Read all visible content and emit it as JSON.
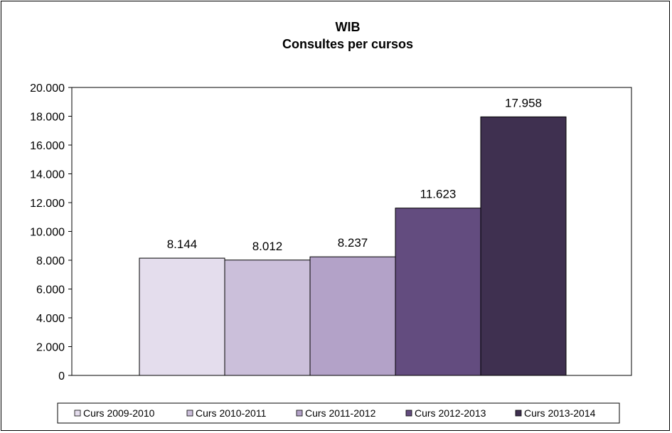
{
  "chart_data": {
    "type": "bar",
    "title": "WIB",
    "subtitle": "Consultes per cursos",
    "xlabel": "",
    "ylabel": "",
    "ylim": [
      0,
      20000
    ],
    "yticks": [
      0,
      2000,
      4000,
      6000,
      8000,
      10000,
      12000,
      14000,
      16000,
      18000,
      20000
    ],
    "ytick_labels": [
      "0",
      "2.000",
      "4.000",
      "6.000",
      "8.000",
      "10.000",
      "12.000",
      "14.000",
      "16.000",
      "18.000",
      "20.000"
    ],
    "grid": false,
    "legend_position": "bottom",
    "series": [
      {
        "name": "Curs 2009-2010",
        "value": 8144,
        "label": "8.144",
        "color": "#e4dded"
      },
      {
        "name": "Curs 2010-2011",
        "value": 8012,
        "label": "8.012",
        "color": "#cbbfda"
      },
      {
        "name": "Curs 2011-2012",
        "value": 8237,
        "label": "8.237",
        "color": "#b3a2c8"
      },
      {
        "name": "Curs 2012-2013",
        "value": 11623,
        "label": "11.623",
        "color": "#634c7f"
      },
      {
        "name": "Curs 2013-2014",
        "value": 17958,
        "label": "17.958",
        "color": "#3f3050"
      }
    ]
  }
}
